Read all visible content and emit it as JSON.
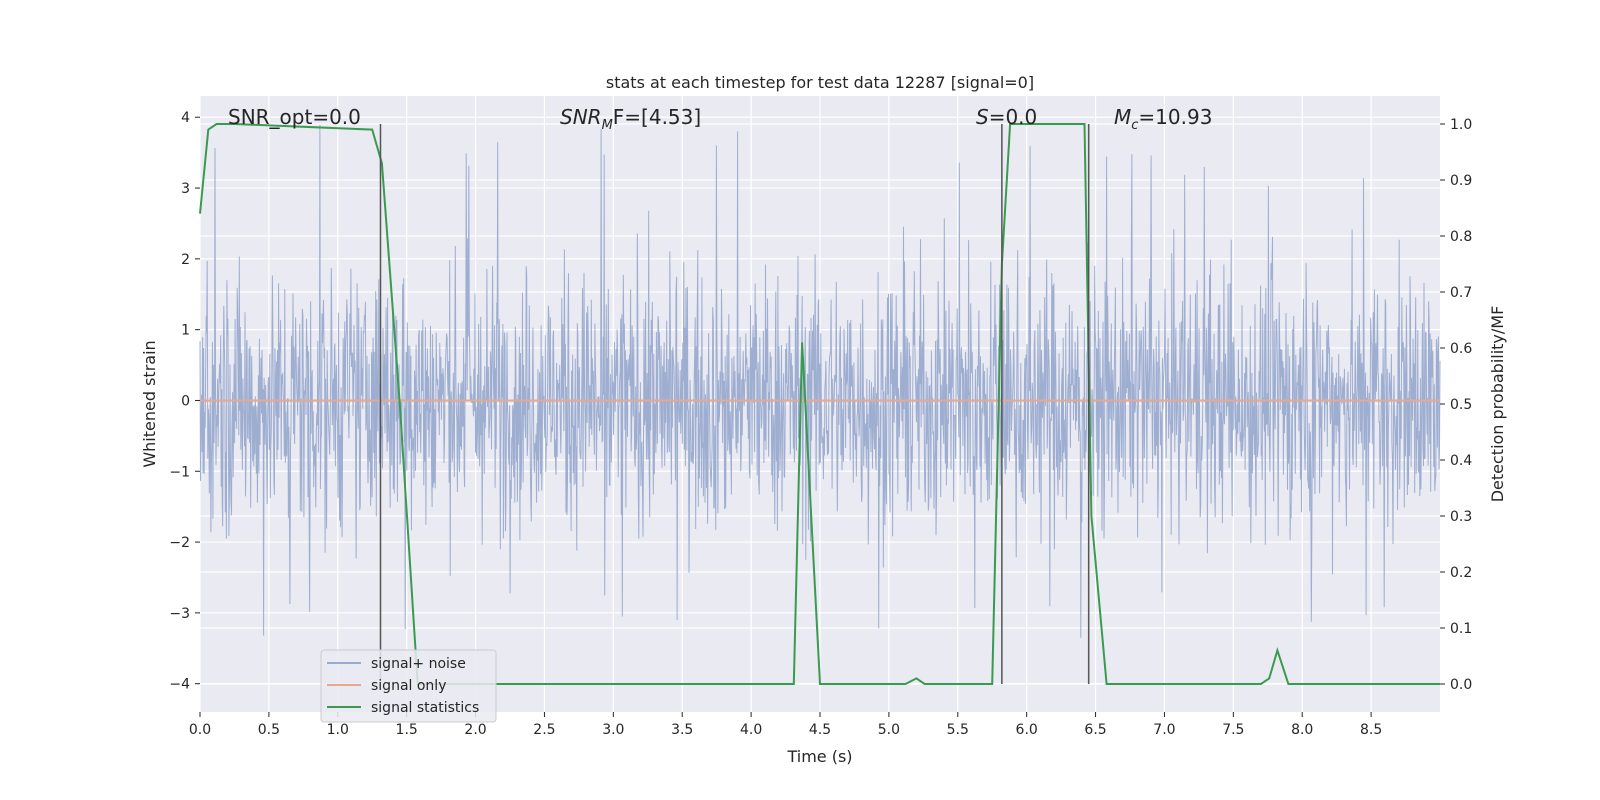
{
  "chart_data": {
    "type": "line",
    "title": "stats at each timestep for test data 12287 [signal=0]",
    "xlabel": "Time (s)",
    "ylabel": "Whitened strain",
    "y2label": "Detection probability/MF",
    "xlim": [
      0.0,
      9.0
    ],
    "ylim": [
      -4.4,
      4.3
    ],
    "y2lim": [
      -0.05,
      1.05
    ],
    "xticks": [
      0.0,
      0.5,
      1.0,
      1.5,
      2.0,
      2.5,
      3.0,
      3.5,
      4.0,
      4.5,
      5.0,
      5.5,
      6.0,
      6.5,
      7.0,
      7.5,
      8.0,
      8.5
    ],
    "xtick_labels": [
      "0.0",
      "0.5",
      "1.0",
      "1.5",
      "2.0",
      "2.5",
      "3.0",
      "3.5",
      "4.0",
      "4.5",
      "5.0",
      "5.5",
      "6.0",
      "6.5",
      "7.0",
      "7.5",
      "8.0",
      "8.5"
    ],
    "yticks": [
      -4,
      -3,
      -2,
      -1,
      0,
      1,
      2,
      3,
      4
    ],
    "ytick_labels": [
      "−4",
      "−3",
      "−2",
      "−1",
      "0",
      "1",
      "2",
      "3",
      "4"
    ],
    "y2ticks": [
      0.0,
      0.1,
      0.2,
      0.3,
      0.4,
      0.5,
      0.6,
      0.7,
      0.8,
      0.9,
      1.0
    ],
    "y2tick_labels": [
      "0.0",
      "0.1",
      "0.2",
      "0.3",
      "0.4",
      "0.5",
      "0.6",
      "0.7",
      "0.8",
      "0.9",
      "1.0"
    ],
    "grid": true,
    "legend_position": "lower-left",
    "annotations": {
      "snr_opt": "SNR_opt=0.0",
      "snr_mf_main": "SNR",
      "snr_mf_sub": "M",
      "snr_mf_rest": "F=[4.53]",
      "s_main": "S",
      "s_rest": "=0.0",
      "mc_main": "M",
      "mc_sub": "c",
      "mc_rest": "=10.93"
    },
    "vlines_x": [
      1.31,
      5.82,
      6.45
    ],
    "series": [
      {
        "name": "signal+ noise",
        "color": "#9aabcf",
        "axis": "left",
        "description_note": "dense whitened noise, amplitude roughly within -3.5..3.9",
        "peak_range": [
          -3.5,
          3.9
        ]
      },
      {
        "name": "signal only",
        "color": "#e8a88e",
        "axis": "left",
        "x": [
          0.0,
          9.0
        ],
        "y": [
          0.0,
          0.0
        ]
      },
      {
        "name": "signal statistics",
        "color": "#3a9a4f",
        "axis": "right",
        "x": [
          0.0,
          0.06,
          0.12,
          0.25,
          1.25,
          1.32,
          1.45,
          1.58,
          4.25,
          4.31,
          4.37,
          4.5,
          5.12,
          5.2,
          5.26,
          5.75,
          5.82,
          5.88,
          5.95,
          6.42,
          6.47,
          6.58,
          7.7,
          7.76,
          7.82,
          7.9,
          7.98,
          9.0
        ],
        "y": [
          0.84,
          0.99,
          1.0,
          1.0,
          0.99,
          0.93,
          0.5,
          0.0,
          0.0,
          0.0,
          0.61,
          0.0,
          0.0,
          0.01,
          0.0,
          0.0,
          0.75,
          1.0,
          1.0,
          1.0,
          0.3,
          0.0,
          0.0,
          0.01,
          0.06,
          0.0,
          0.0,
          0.0
        ]
      }
    ]
  }
}
